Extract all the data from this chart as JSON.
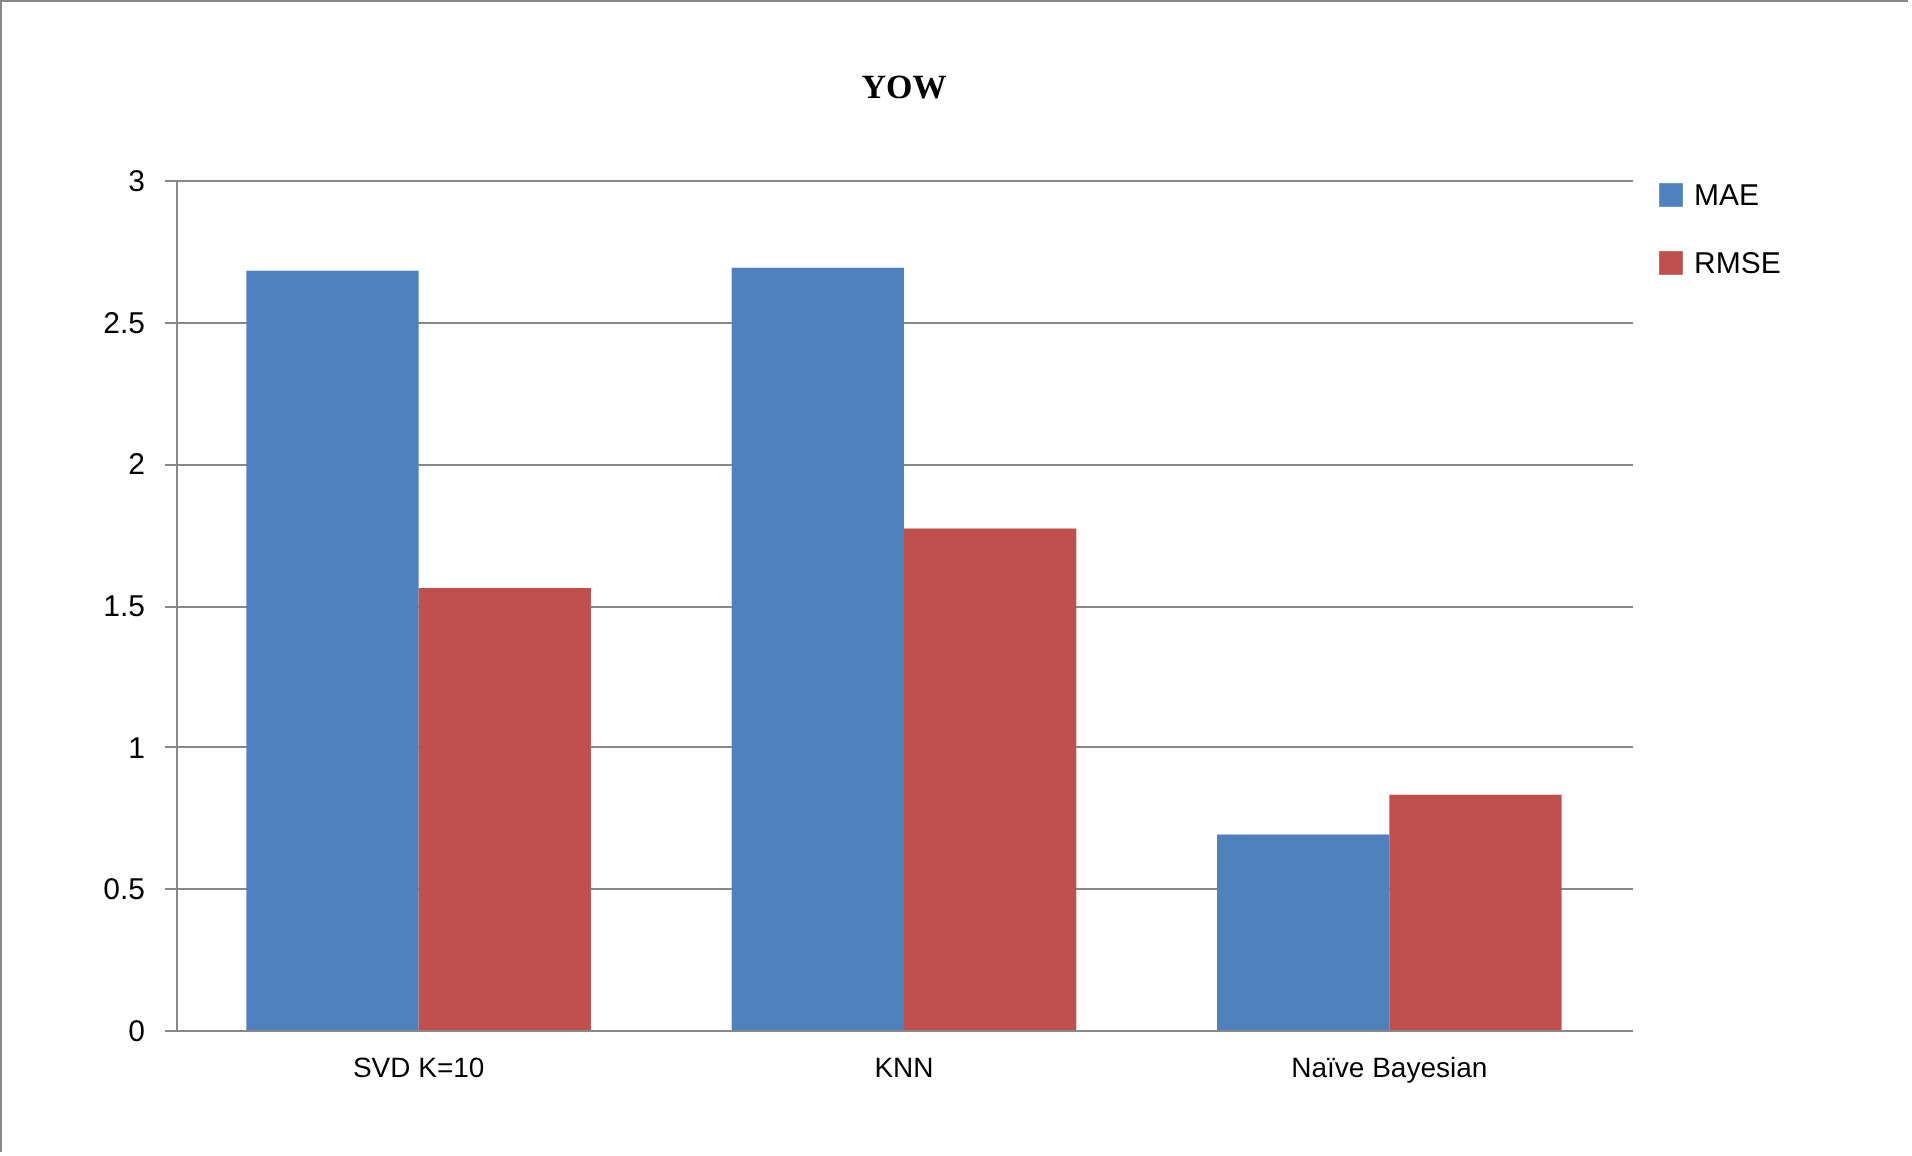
{
  "chart_data": {
    "type": "bar",
    "title": "YOW",
    "categories": [
      "SVD K=10",
      "KNN",
      "Naïve Bayesian"
    ],
    "series": [
      {
        "name": "MAE",
        "color": "#4f81bd",
        "values": [
          2.68,
          2.69,
          0.69
        ]
      },
      {
        "name": "RMSE",
        "color": "#c0504d",
        "values": [
          1.56,
          1.77,
          0.83
        ]
      }
    ],
    "ylim": [
      0,
      3
    ],
    "yticks": [
      0,
      0.5,
      1,
      1.5,
      2,
      2.5,
      3
    ],
    "grid": "y",
    "legend": "right"
  }
}
